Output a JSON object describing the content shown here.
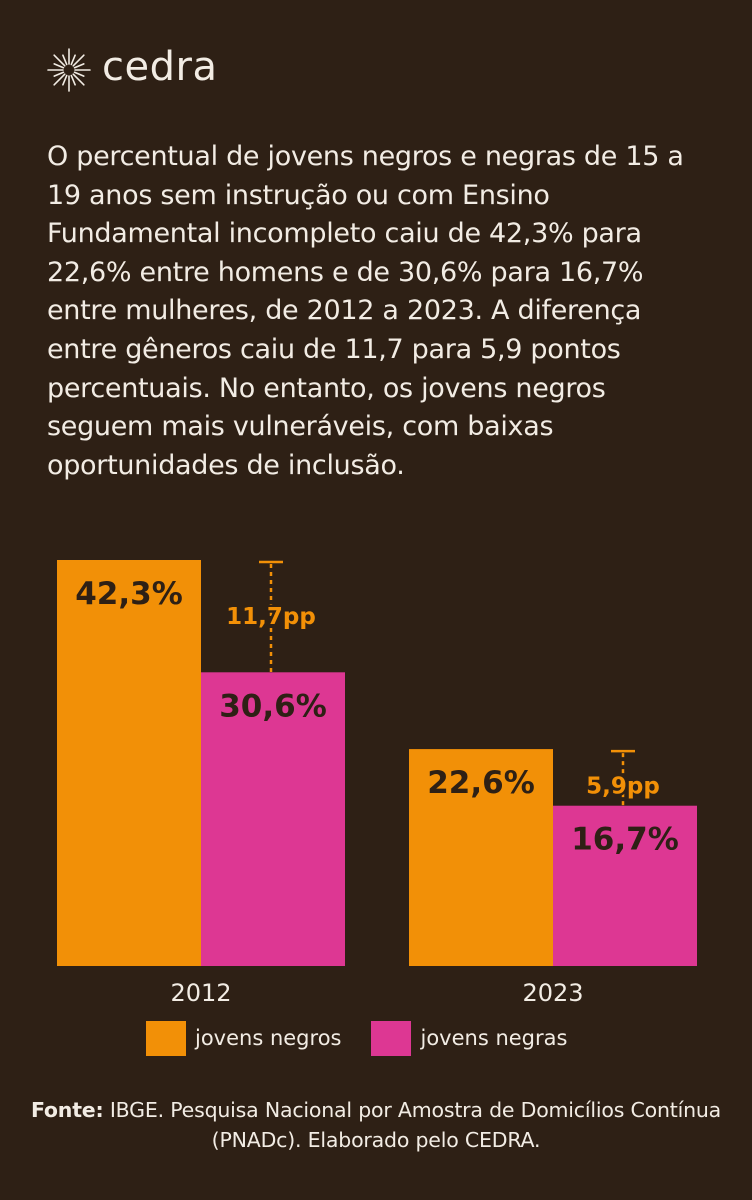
{
  "brand": {
    "name": "cedra",
    "icon": "sunburst-icon"
  },
  "intro": {
    "text": "O percentual de jovens negros e negras de 15 a 19 anos sem instrução ou com Ensino Fundamental incompleto caiu de 42,3% para 22,6% entre homens e de 30,6% para 16,7% entre mulheres, de 2012 a 2023. A diferença entre gêneros caiu de 11,7 para 5,9 pontos percentuais. No entanto, os jovens negros seguem mais vulneráveis, com baixas oportunidades de inclusão."
  },
  "chart_data": {
    "type": "bar",
    "categories": [
      "2012",
      "2023"
    ],
    "series": [
      {
        "name": "jovens negros",
        "values": [
          42.3,
          22.6
        ],
        "labels": [
          "42,3%",
          "22,6%"
        ],
        "color": "#f29007"
      },
      {
        "name": "jovens negras",
        "values": [
          30.6,
          16.7
        ],
        "labels": [
          "30,6%",
          "16,7%"
        ],
        "color": "#dd3793"
      }
    ],
    "gaps": [
      "11,7pp",
      "5,9pp"
    ],
    "gap_color": "#f29007",
    "ylim": [
      0,
      42.3
    ],
    "title": "",
    "xlabel": "",
    "ylabel": "",
    "grid": false,
    "legend_position": "bottom"
  },
  "legend": {
    "items": [
      {
        "label": "jovens negros",
        "color": "#f29007"
      },
      {
        "label": "jovens negras",
        "color": "#dd3793"
      }
    ]
  },
  "source": {
    "label": "Fonte:",
    "text": " IBGE. Pesquisa Nacional por Amostra de Domicílios Contínua (PNADc). Elaborado pelo CEDRA."
  },
  "colors": {
    "background": "#2e2015",
    "text": "#f2ece4",
    "bar_label": "#2e2015"
  }
}
